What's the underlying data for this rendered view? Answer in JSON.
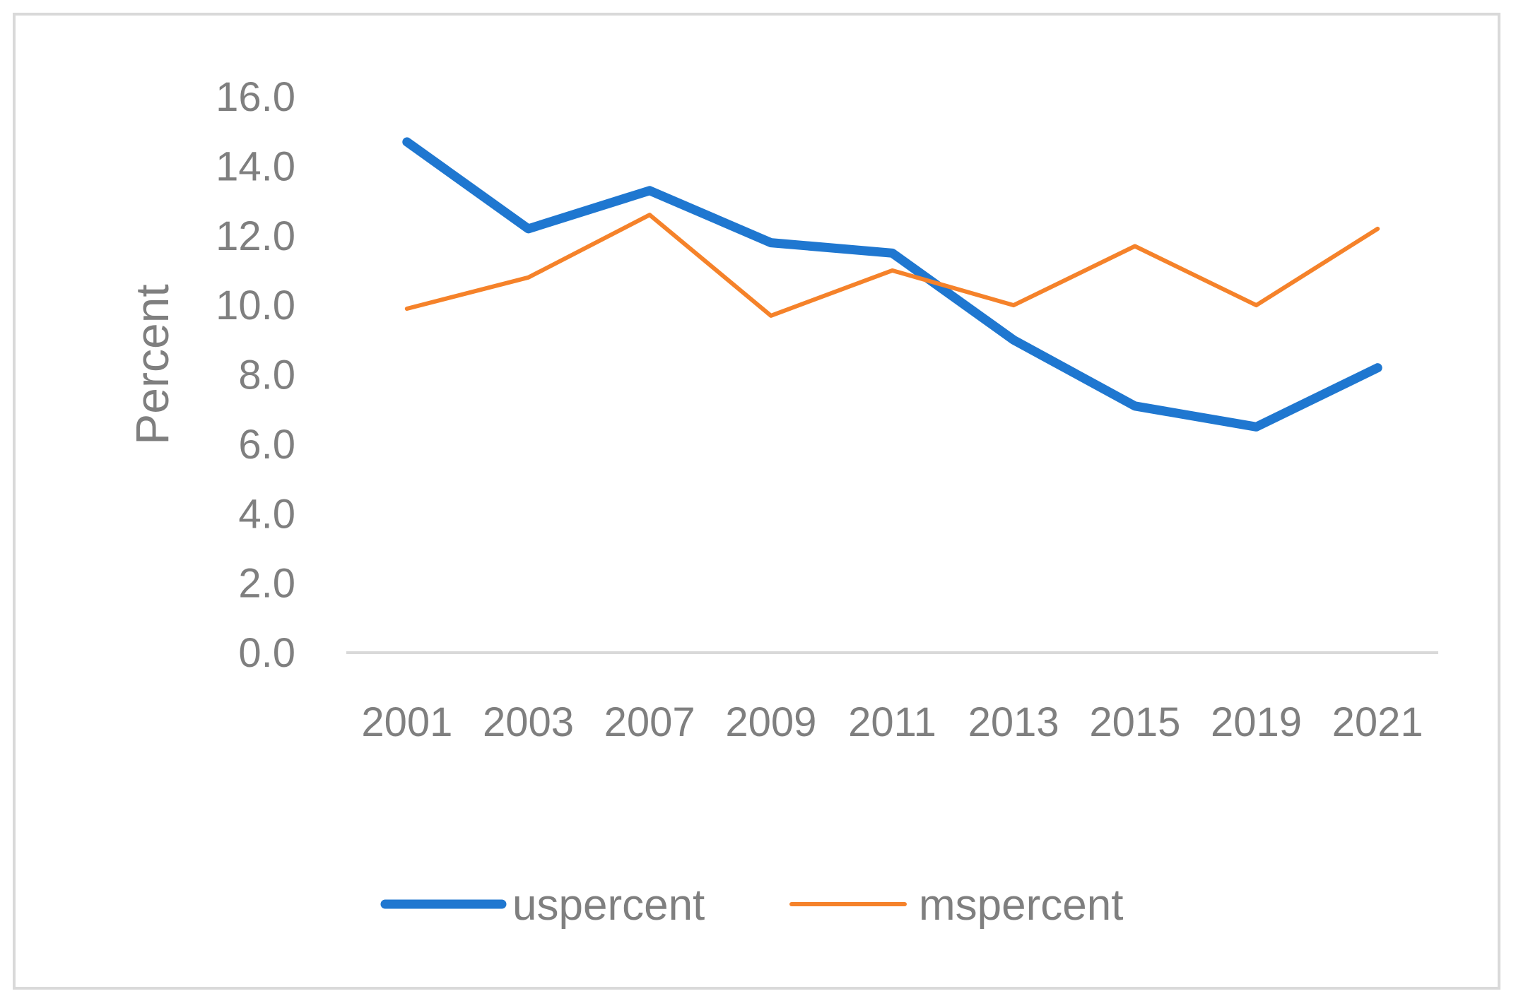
{
  "chart_data": {
    "type": "line",
    "title": "",
    "xlabel": "",
    "ylabel": "Percent",
    "categories": [
      "2001",
      "2003",
      "2007",
      "2009",
      "2011",
      "2013",
      "2015",
      "2019",
      "2021"
    ],
    "ylim": [
      0,
      16
    ],
    "yticks": [
      "0.0",
      "2.0",
      "4.0",
      "6.0",
      "8.0",
      "10.0",
      "12.0",
      "14.0",
      "16.0"
    ],
    "grid": false,
    "legend_position": "bottom",
    "series": [
      {
        "name": "uspercent",
        "color": "#1f77d0",
        "values": [
          14.7,
          12.2,
          13.3,
          11.8,
          11.5,
          9.0,
          7.1,
          6.5,
          8.2
        ]
      },
      {
        "name": "mspercent",
        "color": "#f5822a",
        "values": [
          9.9,
          10.8,
          12.6,
          9.7,
          11.0,
          10.0,
          11.7,
          10.0,
          12.2
        ]
      }
    ]
  }
}
